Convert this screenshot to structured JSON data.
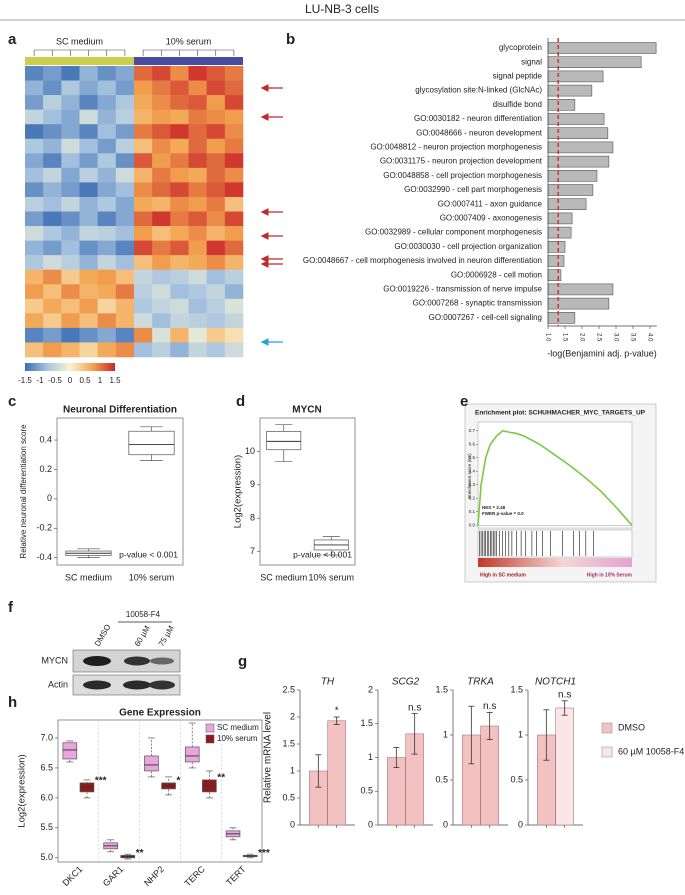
{
  "figure_title": "LU-NB-3 cells",
  "blot": {
    "panel": "f",
    "treatment": "10058-F4",
    "lanes": [
      "DMSO",
      "60 µM",
      "75 µM"
    ],
    "rows": [
      "MYCN",
      "Actin"
    ]
  },
  "chart_data": [
    {
      "panel": "a",
      "type": "heatmap",
      "groups": [
        "SC medium",
        "10% serum"
      ],
      "group_colors": [
        "#c9cf4c",
        "#4a4d9f"
      ],
      "colormap": [
        "#3b6db3",
        "#a9c6e0",
        "#f8f4d4",
        "#f3a54f",
        "#c9262a"
      ],
      "clim": [
        -1.5,
        1.5
      ],
      "colorbar_ticks": [
        -1.5,
        -1,
        -0.5,
        0,
        0.5,
        1,
        1.5
      ],
      "values": [
        [
          -1.3,
          -1.1,
          -1.4,
          -0.9,
          -1.2,
          -1.0,
          1.1,
          1.3,
          0.9,
          1.4,
          1.2,
          1.0
        ],
        [
          -0.9,
          -1.2,
          -0.7,
          -1.0,
          -0.8,
          -1.1,
          0.8,
          1.0,
          1.2,
          0.9,
          1.3,
          1.1
        ],
        [
          -1.1,
          -0.6,
          -0.9,
          -1.3,
          -1.0,
          -0.7,
          0.7,
          0.9,
          1.1,
          1.2,
          0.8,
          1.3
        ],
        [
          -0.5,
          -0.8,
          -1.0,
          -0.4,
          -0.9,
          -0.6,
          0.6,
          0.8,
          0.7,
          1.0,
          0.9,
          0.8
        ],
        [
          -1.4,
          -1.2,
          -1.0,
          -1.3,
          -0.8,
          -1.1,
          1.0,
          1.2,
          1.4,
          1.1,
          1.3,
          0.9
        ],
        [
          -0.7,
          -0.9,
          -0.4,
          -0.8,
          -1.1,
          -0.6,
          0.5,
          0.9,
          0.7,
          1.1,
          0.8,
          1.0
        ],
        [
          -1.0,
          -1.3,
          -0.8,
          -1.1,
          -0.7,
          -1.2,
          1.2,
          0.8,
          1.0,
          1.3,
          1.1,
          1.4
        ],
        [
          -0.8,
          -0.5,
          -1.0,
          -0.6,
          -0.9,
          -0.4,
          0.6,
          1.0,
          0.8,
          0.7,
          1.1,
          0.9
        ],
        [
          -1.2,
          -0.9,
          -1.1,
          -1.4,
          -1.0,
          -0.8,
          0.9,
          1.1,
          1.3,
          1.0,
          1.2,
          1.4
        ],
        [
          -0.6,
          -0.8,
          -0.5,
          -0.9,
          -0.7,
          -1.0,
          0.7,
          0.6,
          0.9,
          0.8,
          1.0,
          0.5
        ],
        [
          -1.1,
          -1.4,
          -1.2,
          -0.9,
          -1.3,
          -1.0,
          1.1,
          1.4,
          1.0,
          1.2,
          0.9,
          1.3
        ],
        [
          -0.4,
          -0.7,
          -0.9,
          -0.5,
          -0.6,
          -0.8,
          0.8,
          0.5,
          0.7,
          0.9,
          0.6,
          0.8
        ],
        [
          -0.9,
          -1.1,
          -0.8,
          -1.2,
          -1.0,
          -1.3,
          1.3,
          1.0,
          1.2,
          0.8,
          1.4,
          1.1
        ],
        [
          -0.7,
          -0.4,
          -0.6,
          -0.9,
          -0.5,
          -0.8,
          0.5,
          0.8,
          0.6,
          0.7,
          0.9,
          0.6
        ],
        [
          0.6,
          0.9,
          0.4,
          0.7,
          0.8,
          0.5,
          -0.5,
          -0.7,
          -0.6,
          -0.4,
          -0.8,
          -0.6
        ],
        [
          0.8,
          0.5,
          0.9,
          0.6,
          0.7,
          1.0,
          -0.6,
          -0.4,
          -0.8,
          -0.7,
          -0.5,
          -0.9
        ],
        [
          0.4,
          0.7,
          0.5,
          0.8,
          0.3,
          0.6,
          -0.7,
          -0.5,
          -0.4,
          -0.8,
          -0.6,
          -0.3
        ],
        [
          0.7,
          0.4,
          0.8,
          0.5,
          0.9,
          0.6,
          -0.4,
          -0.8,
          -0.5,
          -0.6,
          -0.7,
          -0.5
        ],
        [
          -1.3,
          -1.1,
          -1.4,
          -1.2,
          -1.0,
          -1.3,
          0.9,
          -0.3,
          0.6,
          -0.2,
          0.4,
          0.2
        ],
        [
          0.5,
          0.8,
          0.6,
          0.3,
          0.7,
          0.9,
          -0.8,
          -0.6,
          -0.9,
          -0.5,
          -0.7,
          -0.4
        ]
      ]
    },
    {
      "panel": "b",
      "type": "bar",
      "orientation": "horizontal",
      "categories": [
        "glycoprotein",
        "signal",
        "signal peptide",
        "glycosylation site:N-linked (GlcNAc)",
        "disulfide bond",
        "GO:0030182 - neuron differentiation",
        "GO:0048666 - neuron development",
        "GO:0048812 - neuron projection morphogenesis",
        "GO:0031175 - neuron projection development",
        "GO:0048858 - cell projection morphogenesis",
        "GO:0032990 - cell part morphogenesis",
        "GO:0007411 - axon guidance",
        "GO:0007409 - axonogenesis",
        "GO:0032989 - cellular component morphogenesis",
        "GO:0030030 - cell projection organization",
        "GO:0048667 - cell morphogenesis involved in neuron differentiation",
        "GO:0006928 - cell motion",
        "GO:0019226 - transmission of nerve impulse",
        "GO:0007268 - synaptic transmission",
        "GO:0007267 - cell-cell signaling"
      ],
      "values": [
        4.18,
        3.74,
        2.62,
        2.29,
        1.79,
        2.65,
        2.76,
        2.91,
        2.79,
        2.44,
        2.32,
        2.12,
        1.71,
        1.68,
        1.5,
        1.47,
        1.38,
        2.91,
        2.79,
        1.79
      ],
      "color": "#b9b9b9",
      "xlim": [
        1,
        4.2
      ],
      "xticks": [
        {
          "value": 1,
          "label": "1.0"
        },
        1.5,
        {
          "value": 2,
          "label": "2.0"
        },
        2.5,
        {
          "value": 3,
          "label": "3.0"
        },
        3.5,
        {
          "value": 4,
          "label": "4.0"
        }
      ],
      "xlabel": "-log(Benjamini adj. p-value)",
      "threshold": 1.3,
      "threshold_color": "#d62728"
    },
    {
      "panel": "c",
      "type": "box",
      "title": "Neuronal Differentiation",
      "ylabel": "Relative neuronal differentiation score",
      "categories": [
        "SC medium",
        "10% serum"
      ],
      "boxes": [
        {
          "min": -0.4,
          "q1": -0.385,
          "median": -0.37,
          "q3": -0.355,
          "max": -0.34
        },
        {
          "min": 0.26,
          "q1": 0.3,
          "median": 0.37,
          "q3": 0.46,
          "max": 0.49
        }
      ],
      "color": "#ffffff",
      "ylim": [
        -0.45,
        0.55
      ],
      "yticks": [
        -0.4,
        -0.2,
        0,
        0.2,
        0.4
      ],
      "note": "p-value < 0.001"
    },
    {
      "panel": "d",
      "type": "box",
      "title": "MYCN",
      "ylabel": "Log2(expression)",
      "categories": [
        "SC medium",
        "10% serum"
      ],
      "boxes": [
        {
          "min": 9.7,
          "q1": 10.05,
          "median": 10.3,
          "q3": 10.6,
          "max": 10.8
        },
        {
          "min": 6.9,
          "q1": 7.05,
          "median": 7.2,
          "q3": 7.35,
          "max": 7.45
        }
      ],
      "color": "#ffffff",
      "ylim": [
        6.6,
        11
      ],
      "yticks": [
        7,
        8,
        9,
        10
      ],
      "note": "p-value < 0.001"
    },
    {
      "panel": "e",
      "type": "line",
      "title": "Enrichment plot: SCHUHMACHER_MYC_TARGETS_UP",
      "ylabel": "Enrichment score (ES)",
      "x": [
        0,
        2,
        5,
        8,
        12,
        16,
        20,
        25,
        30,
        40,
        50,
        60,
        70,
        80,
        90,
        100
      ],
      "values": [
        0,
        0.3,
        0.5,
        0.6,
        0.66,
        0.7,
        0.69,
        0.68,
        0.66,
        0.6,
        0.52,
        0.44,
        0.35,
        0.25,
        0.13,
        0
      ],
      "color": "#7ac943",
      "xlim": [
        0,
        100
      ],
      "ylim": [
        -0.02,
        0.75
      ],
      "yticks": [
        {
          "value": 0,
          "label": "0.0"
        },
        0.1,
        0.2,
        0.3,
        0.4,
        0.5,
        0.6,
        0.7
      ],
      "hits": [
        1,
        2,
        3,
        4,
        5,
        6,
        7,
        8,
        9,
        10,
        11,
        12,
        14,
        16,
        18,
        20,
        22,
        25,
        28,
        31,
        35,
        38,
        42,
        47,
        55,
        62,
        66,
        70,
        75
      ],
      "annotations": [
        "NES = 2.48",
        "FWER p-value = 0.0"
      ],
      "low_label": "High in SC medium",
      "high_label": "High in 10% Serum"
    },
    {
      "panel": "g",
      "type": "bar",
      "title": "TH",
      "ylabel": "Relative mRNA level",
      "series": [
        {
          "name": "DMSO",
          "color": "#f2c2c2",
          "values": [
            1.0
          ],
          "errors": [
            0.3
          ]
        },
        {
          "name": "60 µM 10058-F4",
          "color": "#f2c2c2",
          "values": [
            1.93
          ],
          "errors": [
            0.07
          ]
        }
      ],
      "ylim": [
        0,
        2.5
      ],
      "yticks": [
        0,
        0.5,
        1,
        1.5,
        2,
        2.5
      ],
      "significance": "*"
    },
    {
      "type": "bar",
      "title": "SCG2",
      "series": [
        {
          "name": "DMSO",
          "color": "#f2c2c2",
          "values": [
            1.0
          ],
          "errors": [
            0.15
          ]
        },
        {
          "name": "60 µM 10058-F4",
          "color": "#f2c2c2",
          "values": [
            1.35
          ],
          "errors": [
            0.3
          ]
        }
      ],
      "ylim": [
        0,
        2
      ],
      "yticks": [
        0,
        0.5,
        1,
        1.5,
        2
      ],
      "significance": "n.s"
    },
    {
      "type": "bar",
      "title": "TRKA",
      "series": [
        {
          "name": "DMSO",
          "color": "#f2c2c2",
          "values": [
            1.0
          ],
          "errors": [
            0.32
          ]
        },
        {
          "name": "60 µM 10058-F4",
          "color": "#f2c2c2",
          "values": [
            1.1
          ],
          "errors": [
            0.15
          ]
        }
      ],
      "ylim": [
        0,
        1.5
      ],
      "yticks": [
        0,
        0.5,
        1,
        1.5
      ],
      "significance": "n.s"
    },
    {
      "type": "bar",
      "title": "NOTCH1",
      "legend": "right",
      "series": [
        {
          "name": "DMSO",
          "color": "#f2c2c2",
          "values": [
            1.0
          ],
          "errors": [
            0.28
          ]
        },
        {
          "name": "60 µM 10058-F4",
          "color": "#f9e6e6",
          "values": [
            1.3
          ],
          "errors": [
            0.08
          ]
        }
      ],
      "ylim": [
        0,
        1.5
      ],
      "yticks": [
        0,
        0.5,
        1,
        1.5
      ],
      "significance": "n.s"
    },
    {
      "panel": "h",
      "type": "box",
      "title": "Gene Expression",
      "ylabel": "Log2(expression)",
      "categories": [
        "DKC1",
        "GAR1",
        "NHP2",
        "TERC",
        "TERT"
      ],
      "series": [
        {
          "name": "SC medium",
          "color": "#e8a6dc",
          "boxes": [
            {
              "min": 6.6,
              "q1": 6.65,
              "median": 6.8,
              "q3": 6.92,
              "max": 6.95
            },
            {
              "min": 5.1,
              "q1": 5.15,
              "median": 5.2,
              "q3": 5.25,
              "max": 5.3
            },
            {
              "min": 6.35,
              "q1": 6.45,
              "median": 6.55,
              "q3": 6.7,
              "max": 7.0
            },
            {
              "min": 6.5,
              "q1": 6.6,
              "median": 6.7,
              "q3": 6.85,
              "max": 7.25
            },
            {
              "min": 5.3,
              "q1": 5.35,
              "median": 5.4,
              "q3": 5.45,
              "max": 5.5
            }
          ]
        },
        {
          "name": "10% serum",
          "color": "#8e1b1b",
          "boxes": [
            {
              "min": 6.0,
              "q1": 6.1,
              "median": 6.18,
              "q3": 6.25,
              "max": 6.3
            },
            {
              "min": 4.98,
              "q1": 5.0,
              "median": 5.02,
              "q3": 5.04,
              "max": 5.06
            },
            {
              "min": 6.05,
              "q1": 6.15,
              "median": 6.2,
              "q3": 6.25,
              "max": 6.35
            },
            {
              "min": 6.0,
              "q1": 6.1,
              "median": 6.2,
              "q3": 6.3,
              "max": 6.45
            },
            {
              "min": 5.0,
              "q1": 5.02,
              "median": 5.03,
              "q3": 5.04,
              "max": 5.06
            }
          ]
        }
      ],
      "ylim": [
        4.93,
        7.3
      ],
      "yticks": [
        {
          "value": 5,
          "label": "5.0"
        },
        5.5,
        {
          "value": 6,
          "label": "6.0"
        },
        6.5,
        {
          "value": 7,
          "label": "7.0"
        }
      ],
      "significance": [
        "***",
        "**",
        "*",
        "**",
        "***"
      ]
    }
  ]
}
